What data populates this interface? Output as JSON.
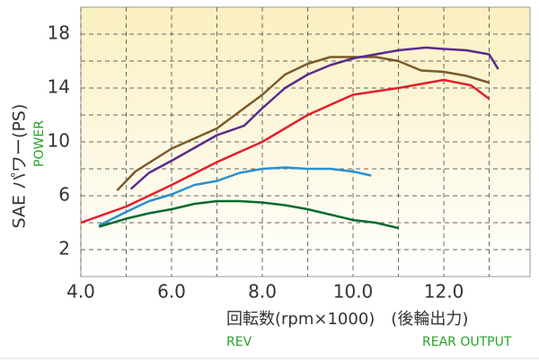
{
  "chart_data": {
    "type": "line",
    "y_label": "SAE パワー(PS)",
    "y_label_en": "POWER",
    "x_label": "回転数(rpm×1000)　(後輪出力)",
    "x_label_en": "REV",
    "x_label_en2": "REAR OUTPUT",
    "xlim": [
      4,
      13.9
    ],
    "ylim": [
      0,
      20
    ],
    "xticks": [
      {
        "value": 4,
        "label": "4.0"
      },
      {
        "value": 6,
        "label": "6.0"
      },
      {
        "value": 8,
        "label": "8.0"
      },
      {
        "value": 10,
        "label": "10.0"
      },
      {
        "value": 12,
        "label": "12.0"
      }
    ],
    "yticks": [
      2,
      6,
      10,
      14,
      18
    ],
    "xminor": [
      5,
      7,
      9,
      11,
      13
    ],
    "yminor": [
      4,
      8,
      12,
      16
    ],
    "grid": true,
    "series": [
      {
        "color": "#e0202a",
        "x": [
          4.0,
          5.0,
          6.0,
          7.0,
          8.0,
          9.0,
          10.0,
          11.0,
          12.0,
          12.6,
          13.0
        ],
        "values": [
          4.0,
          5.2,
          6.8,
          8.5,
          10.0,
          12.0,
          13.5,
          14.0,
          14.6,
          14.2,
          13.2
        ]
      },
      {
        "color": "#7a5a2a",
        "x": [
          4.8,
          5.2,
          6.0,
          7.0,
          8.0,
          8.5,
          9.0,
          9.5,
          10.0,
          10.5,
          11.0,
          11.5,
          12.0,
          12.5,
          13.0
        ],
        "values": [
          6.4,
          7.8,
          9.5,
          11.0,
          13.5,
          15.0,
          15.8,
          16.3,
          16.3,
          16.3,
          16.0,
          15.3,
          15.2,
          14.9,
          14.4
        ]
      },
      {
        "color": "#5b2a8c",
        "x": [
          5.1,
          5.5,
          6.0,
          7.0,
          7.6,
          8.0,
          8.5,
          9.0,
          9.5,
          10.0,
          11.0,
          11.6,
          12.0,
          12.5,
          13.0,
          13.2
        ],
        "values": [
          6.5,
          7.7,
          8.6,
          10.5,
          11.2,
          12.5,
          14.0,
          15.0,
          15.7,
          16.2,
          16.8,
          17.0,
          16.9,
          16.8,
          16.5,
          15.4
        ]
      },
      {
        "color": "#2a90d0",
        "x": [
          4.4,
          5.0,
          5.5,
          6.0,
          6.5,
          7.0,
          7.5,
          8.0,
          8.5,
          9.0,
          9.5,
          10.0,
          10.4
        ],
        "values": [
          3.8,
          4.8,
          5.6,
          6.1,
          6.8,
          7.1,
          7.7,
          8.0,
          8.1,
          8.0,
          8.0,
          7.8,
          7.5
        ]
      },
      {
        "color": "#0a6a30",
        "x": [
          4.4,
          5.0,
          5.5,
          6.0,
          6.5,
          7.0,
          7.5,
          8.0,
          8.5,
          9.0,
          9.5,
          10.0,
          10.5,
          11.0
        ],
        "values": [
          3.7,
          4.3,
          4.7,
          5.0,
          5.4,
          5.6,
          5.6,
          5.5,
          5.3,
          5.0,
          4.6,
          4.2,
          4.0,
          3.6
        ]
      }
    ]
  }
}
